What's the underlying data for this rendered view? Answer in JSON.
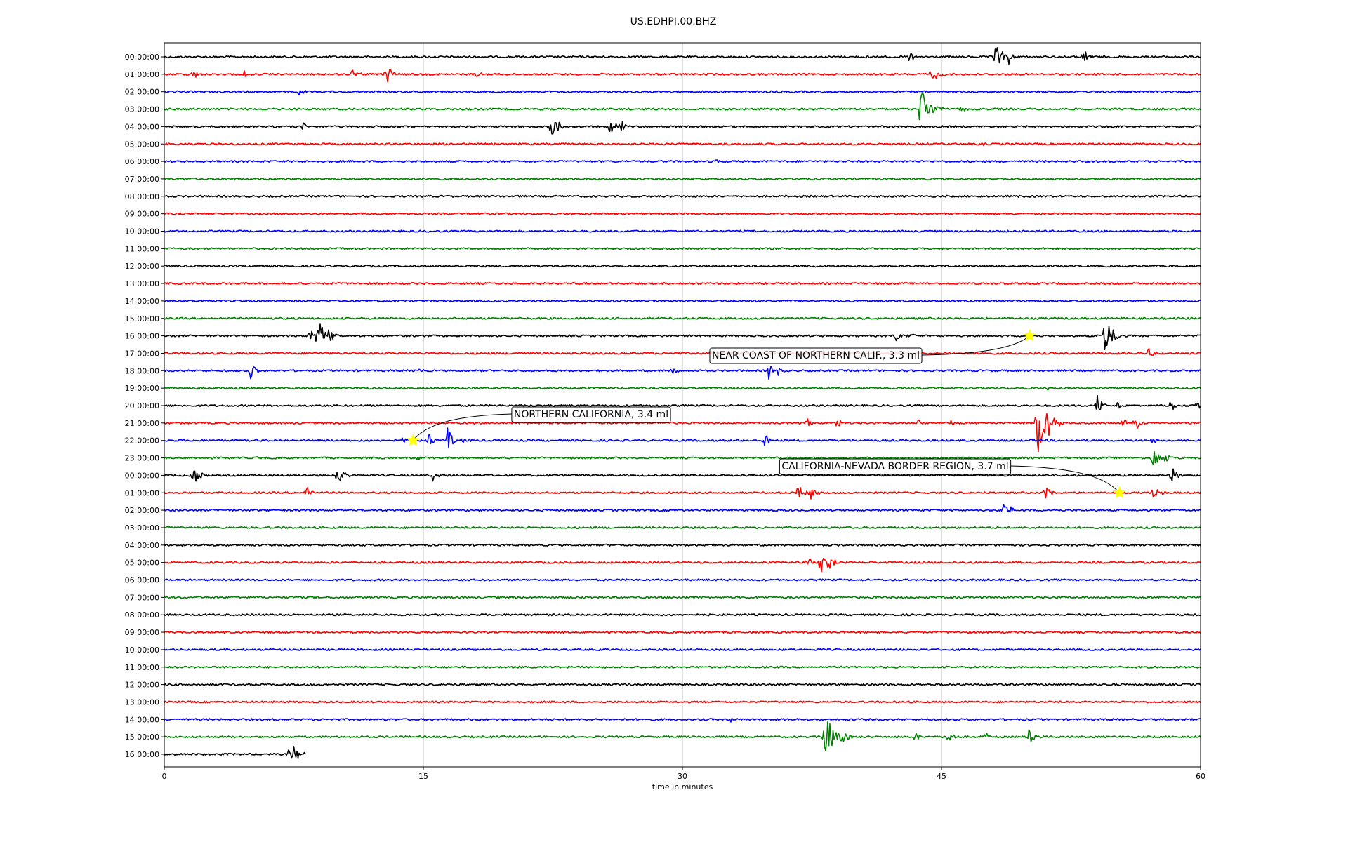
{
  "chart_data": {
    "type": "line",
    "title": "US.EDHPI.00.BHZ",
    "xlabel": "time in minutes",
    "ylabel": "",
    "xlim": [
      0,
      60
    ],
    "x_ticks": [
      "0",
      "15",
      "30",
      "45",
      "60"
    ],
    "x_tick_values": [
      0,
      15,
      30,
      45,
      60
    ],
    "grid": "vertical lines at 15, 30, 45",
    "color_cycle": [
      "#000000",
      "#ff0000",
      "#0000ff",
      "#008000"
    ],
    "rows": [
      {
        "label": "00:00:00",
        "events": [
          [
            40.7,
            0.4
          ],
          [
            43.2,
            0.5
          ],
          [
            48.1,
            1.0
          ],
          [
            48.9,
            0.5
          ],
          [
            53.2,
            0.5
          ]
        ]
      },
      {
        "label": "01:00:00",
        "events": [
          [
            1.7,
            0.35
          ],
          [
            4.6,
            0.3
          ],
          [
            10.8,
            0.4
          ],
          [
            12.8,
            0.7
          ],
          [
            18.0,
            0.3
          ],
          [
            44.4,
            0.4
          ],
          [
            44.8,
            0.4
          ]
        ]
      },
      {
        "label": "02:00:00",
        "events": [
          [
            7.8,
            0.3
          ]
        ]
      },
      {
        "label": "03:00:00",
        "events": [
          [
            43.8,
            1.6
          ],
          [
            46.1,
            0.3
          ]
        ]
      },
      {
        "label": "04:00:00",
        "events": [
          [
            8.0,
            0.3
          ],
          [
            22.4,
            0.9
          ],
          [
            25.8,
            0.6
          ],
          [
            26.4,
            0.4
          ]
        ]
      },
      {
        "label": "05:00:00",
        "events": [
          [
            47.2,
            0.2
          ]
        ]
      },
      {
        "label": "06:00:00",
        "events": [
          [
            31.9,
            0.2
          ]
        ]
      },
      {
        "label": "07:00:00",
        "events": []
      },
      {
        "label": "08:00:00",
        "events": []
      },
      {
        "label": "09:00:00",
        "events": []
      },
      {
        "label": "10:00:00",
        "events": []
      },
      {
        "label": "11:00:00",
        "events": []
      },
      {
        "label": "12:00:00",
        "events": []
      },
      {
        "label": "13:00:00",
        "events": []
      },
      {
        "label": "14:00:00",
        "events": []
      },
      {
        "label": "15:00:00",
        "events": []
      },
      {
        "label": "16:00:00",
        "events": [
          [
            8.4,
            0.5
          ],
          [
            8.9,
            1.2
          ],
          [
            9.6,
            0.4
          ],
          [
            42.3,
            0.4
          ],
          [
            43.1,
            0.3
          ],
          [
            54.4,
            1.3
          ]
        ]
      },
      {
        "label": "17:00:00",
        "events": [
          [
            57.0,
            0.4
          ]
        ]
      },
      {
        "label": "18:00:00",
        "events": [
          [
            5.0,
            0.6
          ],
          [
            14.7,
            0.2
          ],
          [
            29.4,
            0.4
          ],
          [
            35.0,
            0.6
          ],
          [
            35.5,
            0.4
          ]
        ]
      },
      {
        "label": "19:00:00",
        "events": [
          [
            51.1,
            0.2
          ]
        ]
      },
      {
        "label": "20:00:00",
        "events": [
          [
            54.0,
            0.6
          ],
          [
            55.2,
            0.3
          ],
          [
            58.3,
            0.4
          ],
          [
            59.8,
            0.4
          ]
        ]
      },
      {
        "label": "21:00:00",
        "events": [
          [
            37.2,
            0.4
          ],
          [
            39.0,
            0.4
          ],
          [
            43.6,
            0.3
          ],
          [
            45.5,
            0.3
          ],
          [
            50.5,
            2.0
          ],
          [
            51.1,
            0.6
          ],
          [
            55.5,
            0.4
          ],
          [
            56.2,
            0.5
          ]
        ]
      },
      {
        "label": "22:00:00",
        "events": [
          [
            5.1,
            0.2
          ],
          [
            13.8,
            0.3
          ],
          [
            15.2,
            0.6
          ],
          [
            16.4,
            0.8
          ],
          [
            17.3,
            0.3
          ],
          [
            34.7,
            0.6
          ],
          [
            57.2,
            0.3
          ]
        ]
      },
      {
        "label": "23:00:00",
        "events": [
          [
            5.2,
            0.15
          ],
          [
            14.7,
            0.2
          ],
          [
            57.2,
            0.8
          ],
          [
            58.0,
            0.3
          ]
        ]
      },
      {
        "label": "00:00:00",
        "events": [
          [
            1.7,
            0.7
          ],
          [
            10.0,
            0.7
          ],
          [
            15.5,
            0.5
          ],
          [
            58.3,
            0.6
          ]
        ]
      },
      {
        "label": "01:00:00",
        "events": [
          [
            8.2,
            0.5
          ],
          [
            36.7,
            0.6
          ],
          [
            37.4,
            0.4
          ],
          [
            51.0,
            0.5
          ],
          [
            57.3,
            0.6
          ]
        ]
      },
      {
        "label": "02:00:00",
        "events": [
          [
            48.6,
            0.7
          ]
        ]
      },
      {
        "label": "03:00:00",
        "events": []
      },
      {
        "label": "04:00:00",
        "events": []
      },
      {
        "label": "05:00:00",
        "events": [
          [
            21.8,
            0.2
          ],
          [
            37.2,
            0.5
          ],
          [
            38.0,
            0.8
          ],
          [
            38.5,
            0.4
          ]
        ]
      },
      {
        "label": "06:00:00",
        "events": []
      },
      {
        "label": "07:00:00",
        "events": []
      },
      {
        "label": "08:00:00",
        "events": []
      },
      {
        "label": "09:00:00",
        "events": []
      },
      {
        "label": "10:00:00",
        "events": []
      },
      {
        "label": "11:00:00",
        "events": []
      },
      {
        "label": "12:00:00",
        "events": []
      },
      {
        "label": "13:00:00",
        "events": []
      },
      {
        "label": "14:00:00",
        "events": [
          [
            32.8,
            0.15
          ]
        ]
      },
      {
        "label": "15:00:00",
        "events": [
          [
            38.2,
            1.6
          ],
          [
            39.2,
            0.6
          ],
          [
            43.5,
            0.3
          ],
          [
            45.4,
            0.4
          ],
          [
            47.6,
            0.3
          ],
          [
            50.0,
            0.7
          ]
        ]
      },
      {
        "label": "16:00:00",
        "end_minute": 8.2,
        "events": [
          [
            7.3,
            0.9
          ]
        ]
      }
    ],
    "annotations": [
      {
        "text": "NEAR COAST OF NORTHERN CALIF., 3.3 ml",
        "row": 16,
        "minute": 50.1
      },
      {
        "text": "NORTHERN CALIFORNIA, 3.4 ml",
        "row": 22,
        "minute": 14.4
      },
      {
        "text": "CALIFORNIA-NEVADA BORDER REGION, 3.7 ml",
        "row": 25,
        "minute": 55.3
      }
    ],
    "marker_color": "#ffff00"
  }
}
